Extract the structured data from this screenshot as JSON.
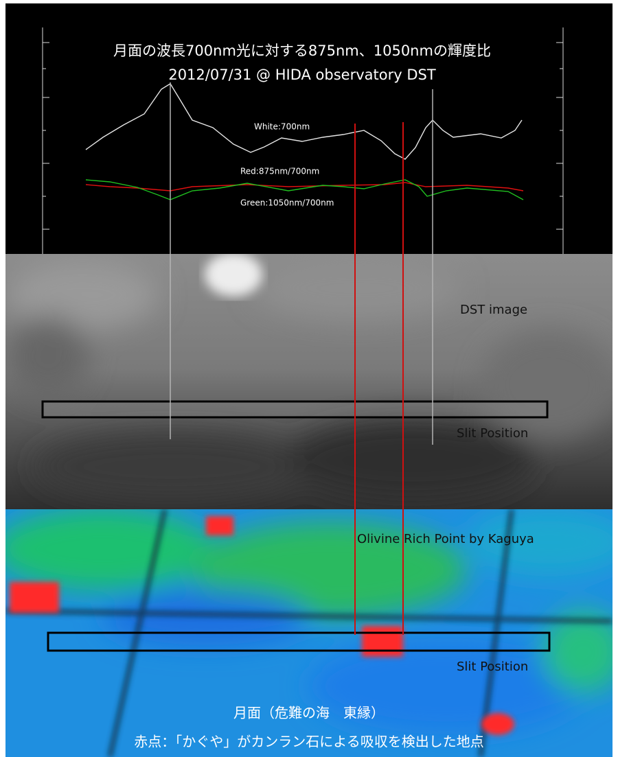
{
  "plot": {
    "title": "月面の波長700nm光に対する875nm、1050nmの輝度比",
    "subtitle": "2012/07/31  @ HIDA observatory  DST",
    "white_label": "White:700nm",
    "red_label": "Red:875nm/700nm",
    "green_label": "Green:1050nm/700nm"
  },
  "dst_image": {
    "label": "DST image",
    "slit_label": "Slit Position"
  },
  "kaguya_image": {
    "label": "Olivine Rich Point by Kaguya",
    "slit_label": "Slit Position"
  },
  "caption": {
    "line1": "月面（危難の海　東縁）",
    "line2": "赤点：「かぐや」がカンラン石による吸収を検出した地点"
  }
}
